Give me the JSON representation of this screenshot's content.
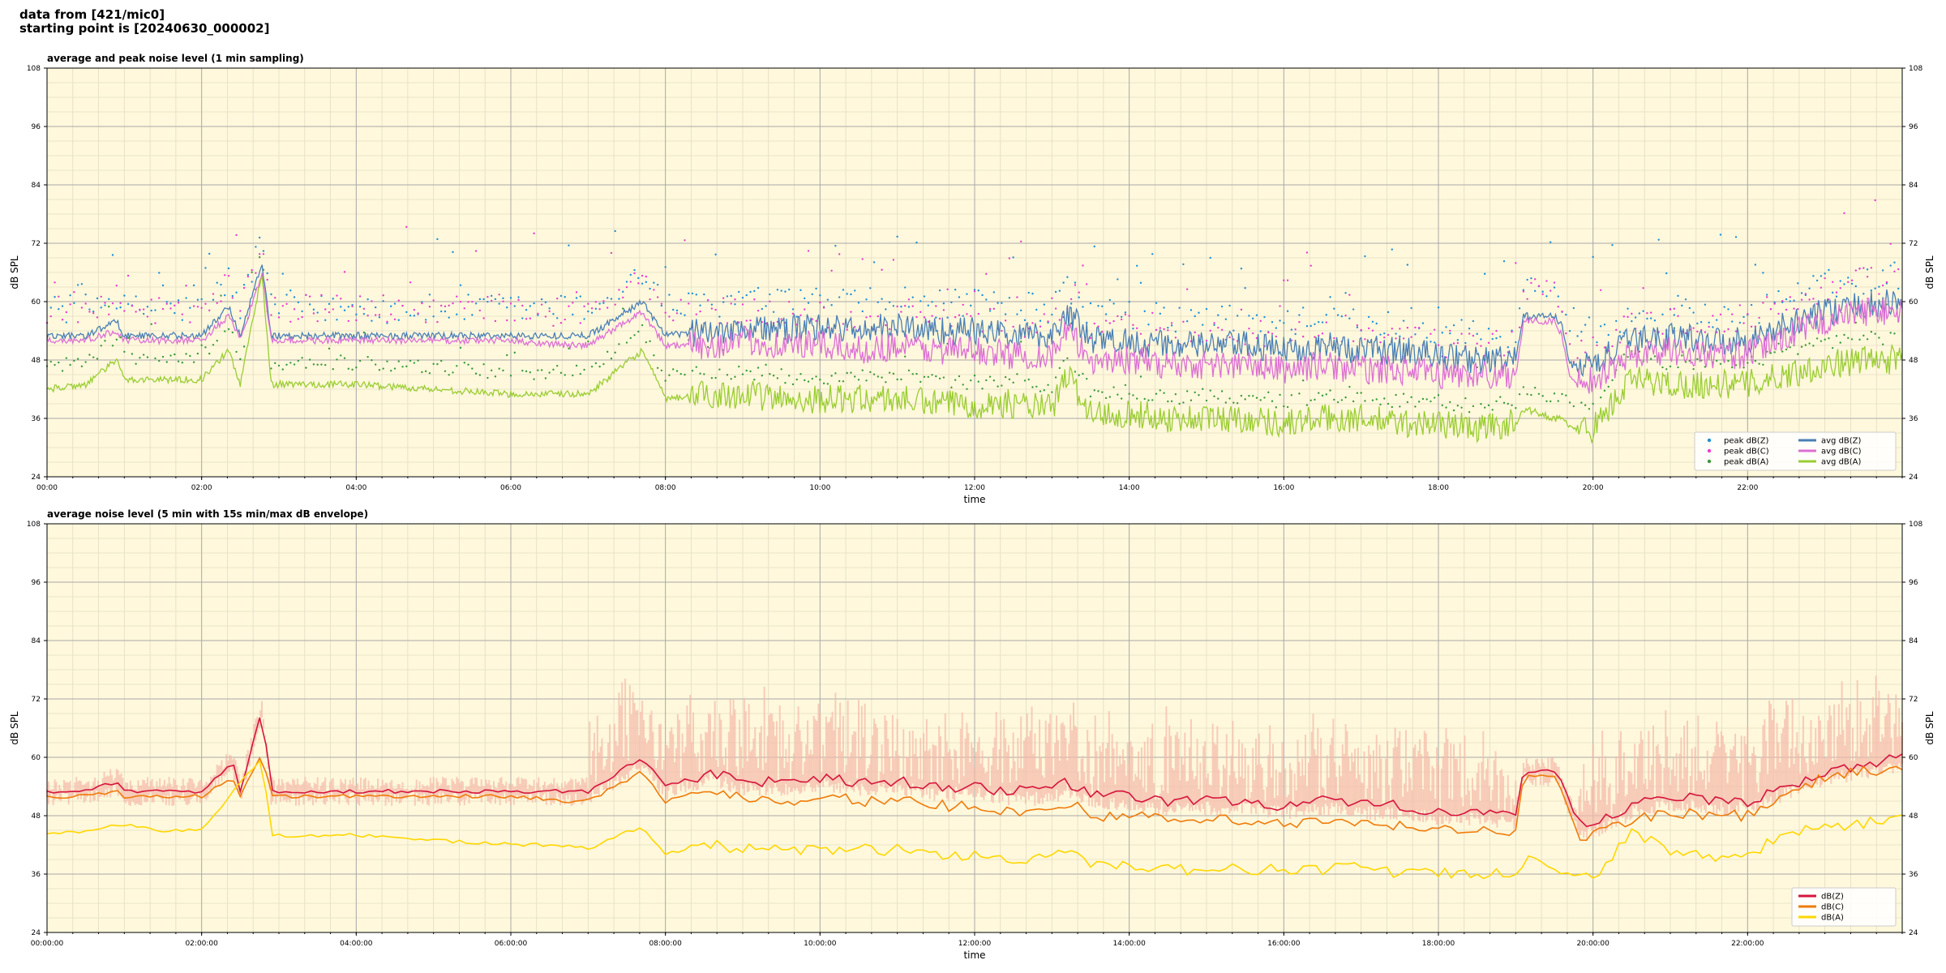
{
  "header": {
    "line1": "data from [421/mic0]",
    "line2": "starting point is [20240630_000002]"
  },
  "colors": {
    "background": "#fff8dc",
    "grid_major": "#a8a8a8",
    "grid_minor": "#e2dcc4"
  },
  "chart_data": [
    {
      "type": "line",
      "title": "average and peak noise level (1 min sampling)",
      "xlabel": "time",
      "ylabel": "dB SPL",
      "xlim": [
        0,
        24
      ],
      "ylim": [
        24,
        108
      ],
      "x_unit": "hours",
      "x_ticks": [
        "00:00",
        "02:00",
        "04:00",
        "06:00",
        "08:00",
        "10:00",
        "12:00",
        "14:00",
        "16:00",
        "18:00",
        "20:00",
        "22:00"
      ],
      "y_ticks": [
        "24",
        "36",
        "48",
        "60",
        "72",
        "84",
        "96",
        "108"
      ],
      "grid": true,
      "legend_position": "bottom-right",
      "legend_columns": 2,
      "legend": [
        {
          "label": "peak dB(Z)",
          "color": "#1f8fd6",
          "marker": "dot"
        },
        {
          "label": "peak dB(C)",
          "color": "#e83ccf",
          "marker": "dot"
        },
        {
          "label": "peak dB(A)",
          "color": "#3a9a3a",
          "marker": "dot"
        },
        {
          "label": "avg dB(Z)",
          "color": "#4a7fb5",
          "marker": "line"
        },
        {
          "label": "avg dB(C)",
          "color": "#dd6fd6",
          "marker": "line"
        },
        {
          "label": "avg dB(A)",
          "color": "#9acd32",
          "marker": "line"
        }
      ],
      "series": [
        {
          "name": "avg dB(Z)",
          "color": "#4a7fb5",
          "x": [
            0,
            0.5,
            0.9,
            1.0,
            1.5,
            2.0,
            2.35,
            2.5,
            2.78,
            2.9,
            3.5,
            4.0,
            5.0,
            6.0,
            6.8,
            7.0,
            7.7,
            8.0,
            8.6,
            9.0,
            9.5,
            10.0,
            10.5,
            11.0,
            11.5,
            12.0,
            12.5,
            13.0,
            13.2,
            13.5,
            14.0,
            14.5,
            15.0,
            15.5,
            16.0,
            16.5,
            17.0,
            17.5,
            18.0,
            18.5,
            19.0,
            19.1,
            19.5,
            19.6,
            19.7,
            20.0,
            20.5,
            21.0,
            21.5,
            22.0,
            22.5,
            23.0,
            23.5,
            24.0
          ],
          "y": [
            53,
            53,
            56,
            53,
            53,
            53,
            59,
            53,
            68,
            53,
            53,
            53,
            53,
            53,
            53,
            53,
            60,
            53,
            54,
            55,
            54,
            55,
            54,
            55,
            54,
            54,
            53,
            53,
            58,
            52,
            52,
            51,
            51,
            51,
            50,
            51,
            50,
            50,
            49,
            48,
            48,
            57,
            57,
            55,
            47,
            47,
            52,
            53,
            52,
            52,
            55,
            58,
            59,
            60
          ]
        },
        {
          "name": "avg dB(C)",
          "color": "#dd6fd6",
          "x": [
            0,
            0.5,
            0.9,
            1.0,
            1.5,
            2.0,
            2.35,
            2.5,
            2.78,
            2.9,
            3.5,
            4.0,
            5.0,
            6.0,
            6.8,
            7.0,
            7.7,
            8.0,
            8.6,
            9.0,
            9.5,
            10.0,
            10.5,
            11.0,
            11.5,
            12.0,
            12.5,
            13.0,
            13.2,
            13.5,
            14.0,
            14.5,
            15.0,
            15.5,
            16.0,
            16.5,
            17.0,
            17.5,
            18.0,
            18.5,
            19.0,
            19.1,
            19.5,
            19.6,
            19.7,
            20.0,
            20.5,
            21.0,
            21.5,
            22.0,
            22.5,
            23.0,
            23.5,
            24.0
          ],
          "y": [
            52,
            52,
            54,
            52,
            52,
            52,
            57,
            52,
            66,
            52,
            52,
            52,
            52,
            52,
            51,
            51,
            58,
            51,
            51,
            52,
            51,
            51,
            50,
            51,
            50,
            50,
            49,
            49,
            54,
            48,
            48,
            47,
            47,
            47,
            46,
            47,
            46,
            46,
            45,
            45,
            45,
            56,
            56,
            53,
            44,
            44,
            49,
            50,
            49,
            49,
            53,
            56,
            58,
            58
          ]
        },
        {
          "name": "avg dB(A)",
          "color": "#9acd32",
          "x": [
            0,
            0.5,
            0.9,
            1.0,
            1.5,
            2.0,
            2.35,
            2.5,
            2.78,
            2.9,
            3.5,
            4.0,
            5.0,
            6.0,
            6.8,
            7.0,
            7.7,
            8.0,
            8.6,
            9.0,
            9.5,
            10.0,
            10.5,
            11.0,
            11.5,
            12.0,
            12.5,
            13.0,
            13.2,
            13.5,
            14.0,
            14.5,
            15.0,
            15.5,
            16.0,
            16.5,
            17.0,
            17.5,
            18.0,
            18.5,
            19.0,
            19.1,
            19.5,
            19.6,
            19.7,
            20.0,
            20.5,
            21.0,
            21.5,
            22.0,
            22.5,
            23.0,
            23.5,
            24.0
          ],
          "y": [
            42,
            43,
            48,
            44,
            44,
            44,
            50,
            43,
            66,
            43,
            43,
            43,
            42,
            41,
            41,
            41,
            50,
            40,
            41,
            41,
            40,
            40,
            40,
            40,
            39,
            39,
            39,
            38,
            45,
            37,
            37,
            36,
            36,
            36,
            35,
            36,
            36,
            35,
            35,
            34,
            35,
            38,
            36,
            36,
            34,
            34,
            44,
            43,
            43,
            43,
            45,
            47,
            48,
            48
          ]
        },
        {
          "name": "peak dB(Z)",
          "color": "#1f8fd6",
          "marker": "dot",
          "baseline_offset": 2.5,
          "spread": 10
        },
        {
          "name": "peak dB(C)",
          "color": "#e83ccf",
          "marker": "dot",
          "baseline_offset": 3.5,
          "spread": 10
        },
        {
          "name": "peak dB(A)",
          "color": "#3a9a3a",
          "marker": "dot",
          "baseline_offset": 3,
          "spread": 5
        }
      ]
    },
    {
      "type": "line",
      "title": "average noise level (5 min with 15s min/max dB envelope)",
      "xlabel": "time",
      "ylabel": "dB SPL",
      "xlim": [
        0,
        24
      ],
      "ylim": [
        24,
        108
      ],
      "x_unit": "hours",
      "x_ticks": [
        "00:00:00",
        "02:00:00",
        "04:00:00",
        "06:00:00",
        "08:00:00",
        "10:00:00",
        "12:00:00",
        "14:00:00",
        "16:00:00",
        "18:00:00",
        "20:00:00",
        "22:00:00"
      ],
      "y_ticks": [
        "24",
        "36",
        "48",
        "60",
        "72",
        "84",
        "96",
        "108"
      ],
      "grid": true,
      "legend_position": "bottom-right",
      "legend_columns": 1,
      "legend": [
        {
          "label": "dB(Z)",
          "color": "#d6143c",
          "marker": "line"
        },
        {
          "label": "dB(C)",
          "color": "#ef7b0a",
          "marker": "line"
        },
        {
          "label": "dB(A)",
          "color": "#ffd700",
          "marker": "line"
        }
      ],
      "envelope": {
        "color": "#f4b9a8",
        "max_above": 12,
        "min_below": 3
      },
      "series": [
        {
          "name": "dB(Z)",
          "color": "#d6143c",
          "x": [
            0,
            0.5,
            0.9,
            1.0,
            1.5,
            2.0,
            2.4,
            2.5,
            2.78,
            2.9,
            3.5,
            4.0,
            5.0,
            6.0,
            6.8,
            7.0,
            7.7,
            8.0,
            8.6,
            9.0,
            9.5,
            10.0,
            10.5,
            11.0,
            11.5,
            12.0,
            12.5,
            13.0,
            13.2,
            13.5,
            14.0,
            14.5,
            15.0,
            15.5,
            16.0,
            16.5,
            17.0,
            17.5,
            18.0,
            18.5,
            19.0,
            19.1,
            19.5,
            19.6,
            19.8,
            20.0,
            20.5,
            21.0,
            21.5,
            22.0,
            22.5,
            23.0,
            23.5,
            24.0
          ],
          "y": [
            53,
            53,
            55,
            53,
            53,
            53,
            59,
            53,
            70,
            53,
            53,
            53,
            53,
            53,
            53,
            53,
            60,
            54,
            57,
            55,
            55,
            56,
            55,
            55,
            54,
            54,
            53,
            53,
            55,
            52,
            52,
            51,
            51,
            51,
            50,
            51,
            50,
            50,
            49,
            49,
            48,
            57,
            57,
            55,
            46,
            46,
            50,
            52,
            51,
            51,
            54,
            57,
            58,
            60
          ]
        },
        {
          "name": "dB(C)",
          "color": "#ef7b0a",
          "x": [
            0,
            0.5,
            0.9,
            1.0,
            1.5,
            2.0,
            2.4,
            2.5,
            2.78,
            2.9,
            3.5,
            4.0,
            5.0,
            6.0,
            6.8,
            7.0,
            7.7,
            8.0,
            8.6,
            9.0,
            9.5,
            10.0,
            10.5,
            11.0,
            11.5,
            12.0,
            12.5,
            13.0,
            13.2,
            13.5,
            14.0,
            14.5,
            15.0,
            15.5,
            16.0,
            16.5,
            17.0,
            17.5,
            18.0,
            18.5,
            19.0,
            19.1,
            19.5,
            19.6,
            19.8,
            20.0,
            20.5,
            21.0,
            21.5,
            22.0,
            22.5,
            23.0,
            23.5,
            24.0
          ],
          "y": [
            52,
            52,
            53,
            52,
            52,
            52,
            56,
            52,
            61,
            52,
            52,
            52,
            52,
            52,
            51,
            51,
            57,
            51,
            53,
            52,
            51,
            52,
            51,
            51,
            50,
            50,
            49,
            49,
            51,
            48,
            48,
            47,
            47,
            47,
            46,
            47,
            46,
            46,
            45,
            45,
            45,
            56,
            56,
            53,
            44,
            44,
            47,
            49,
            48,
            48,
            52,
            56,
            57,
            58
          ]
        },
        {
          "name": "dB(A)",
          "color": "#ffd700",
          "x": [
            0,
            0.5,
            1.0,
            1.5,
            2.0,
            2.78,
            2.9,
            3.5,
            4.0,
            5.0,
            6.0,
            6.8,
            7.0,
            7.7,
            8.0,
            8.6,
            9.0,
            9.5,
            10.0,
            10.5,
            11.0,
            11.5,
            12.0,
            12.5,
            13.0,
            13.2,
            13.5,
            14.0,
            14.5,
            15.0,
            15.5,
            16.0,
            16.5,
            17.0,
            17.5,
            18.0,
            18.5,
            19.0,
            19.2,
            19.5,
            19.8,
            20.0,
            20.5,
            21.0,
            21.5,
            22.0,
            22.5,
            23.0,
            23.5,
            24.0
          ],
          "y": [
            44,
            45,
            46,
            45,
            45,
            60,
            44,
            44,
            44,
            43,
            42,
            42,
            41,
            46,
            40,
            42,
            41,
            41,
            41,
            41,
            41,
            40,
            40,
            39,
            39,
            42,
            38,
            38,
            37,
            37,
            37,
            37,
            37,
            38,
            36,
            36,
            36,
            36,
            40,
            37,
            35,
            35,
            45,
            41,
            39,
            40,
            44,
            46,
            46,
            49
          ]
        }
      ]
    }
  ]
}
